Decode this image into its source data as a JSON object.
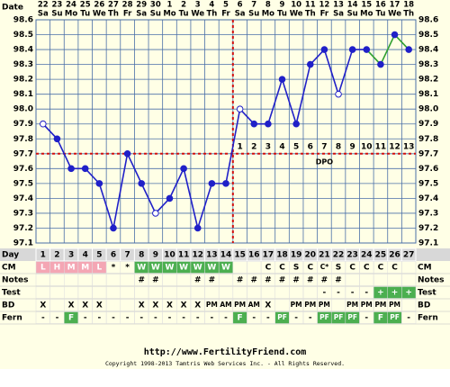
{
  "chart_data": {
    "type": "line",
    "title": "http://www.FertilityFriend.com",
    "subtitle": "Copyright 1998-2013 Tamtris Web Services Inc. - All Rights Reserved.",
    "date_label": "Date",
    "day_label": "Day",
    "categories": [
      1,
      2,
      3,
      4,
      5,
      6,
      7,
      8,
      9,
      10,
      11,
      12,
      13,
      14,
      15,
      16,
      17,
      18,
      19,
      20,
      21,
      22,
      23,
      24,
      25,
      26,
      27
    ],
    "dates": [
      "22",
      "23",
      "24",
      "25",
      "26",
      "27",
      "28",
      "29",
      "30",
      "1",
      "2",
      "3",
      "4",
      "5",
      "6",
      "7",
      "8",
      "9",
      "10",
      "11",
      "12",
      "13",
      "14",
      "15",
      "16",
      "17",
      "18"
    ],
    "weekdays": [
      "Sa",
      "Su",
      "Mo",
      "Tu",
      "We",
      "Th",
      "Fr",
      "Sa",
      "Su",
      "Mo",
      "Tu",
      "We",
      "Th",
      "Fr",
      "Sa",
      "Su",
      "Mo",
      "Tu",
      "We",
      "Th",
      "Fr",
      "Sa",
      "Su",
      "Mo",
      "Tu",
      "We",
      "Th"
    ],
    "series": [
      {
        "color": "#2020c8",
        "post_color": "#30a030",
        "post_from_day": 24,
        "values": [
          97.9,
          97.8,
          97.6,
          97.6,
          97.5,
          97.2,
          97.7,
          97.5,
          97.3,
          97.4,
          97.6,
          97.2,
          97.5,
          97.5,
          98.0,
          97.9,
          97.9,
          98.2,
          97.9,
          98.3,
          98.4,
          98.1,
          98.4,
          98.4,
          98.3,
          98.5,
          98.4
        ],
        "hollow_days": [
          1,
          9,
          15,
          22
        ]
      }
    ],
    "ylim": [
      97.1,
      98.6
    ],
    "yticks": [
      97.1,
      97.2,
      97.3,
      97.4,
      97.5,
      97.6,
      97.7,
      97.8,
      97.9,
      {
        "value": 98,
        "label": "98.0"
      },
      98.1,
      98.2,
      98.3,
      98.4,
      98.5,
      98.6
    ],
    "grid": true,
    "coverline": 97.7,
    "ovulation_day": 14,
    "dpo": [
      1,
      2,
      3,
      4,
      5,
      6,
      7,
      8,
      9,
      10,
      11,
      12,
      13
    ],
    "dpo_label": "DPO",
    "rows": [
      {
        "label": "CM",
        "cells": [
          "L",
          "H",
          "M",
          "M",
          "L",
          "*",
          "*",
          "W",
          "W",
          "W",
          "W",
          "W",
          "W",
          "W",
          null,
          null,
          "C",
          "C",
          "S",
          "C",
          "C*",
          "S",
          "C",
          "C",
          "C",
          "C",
          null
        ],
        "cell_colors": {
          "L": "#f4a6b4",
          "H": "#f4a6b4",
          "M": "#f4a6b4",
          "W": "#4caf50"
        }
      },
      {
        "label": "Notes",
        "cells": [
          null,
          null,
          null,
          null,
          null,
          null,
          null,
          "#",
          "#",
          null,
          null,
          "#",
          "#",
          null,
          "#",
          "#",
          "#",
          "#",
          "#",
          "#",
          "#",
          "#",
          null,
          null,
          null,
          null,
          null
        ],
        "cell_colors": {}
      },
      {
        "label": "Test",
        "cells": [
          null,
          null,
          null,
          null,
          null,
          null,
          null,
          null,
          null,
          null,
          null,
          null,
          null,
          null,
          null,
          null,
          null,
          null,
          null,
          null,
          "-",
          "-",
          "-",
          "-",
          "+",
          "+",
          "+"
        ],
        "cell_colors": {
          "+": "#4caf50"
        }
      },
      {
        "label": "BD",
        "cells": [
          "X",
          null,
          "X",
          "X",
          "X",
          null,
          null,
          "X",
          "X",
          "X",
          "X",
          "X",
          "PM",
          "AM",
          "PM",
          "AM",
          "X",
          null,
          "PM",
          "PM",
          "PM",
          null,
          "PM",
          "PM",
          "PM",
          "PM",
          null
        ],
        "cell_colors": {}
      },
      {
        "label": "Fern",
        "cells": [
          "-",
          "-",
          "F",
          "-",
          "-",
          "-",
          "-",
          "-",
          "-",
          "-",
          "-",
          "-",
          "-",
          "-",
          "F",
          "-",
          "-",
          "PF",
          "-",
          "-",
          "PF",
          "PF",
          "PF",
          "-",
          "F",
          "PF",
          "-"
        ],
        "cell_colors": {
          "F": "#4caf50",
          "PF": "#4caf50"
        }
      }
    ]
  }
}
